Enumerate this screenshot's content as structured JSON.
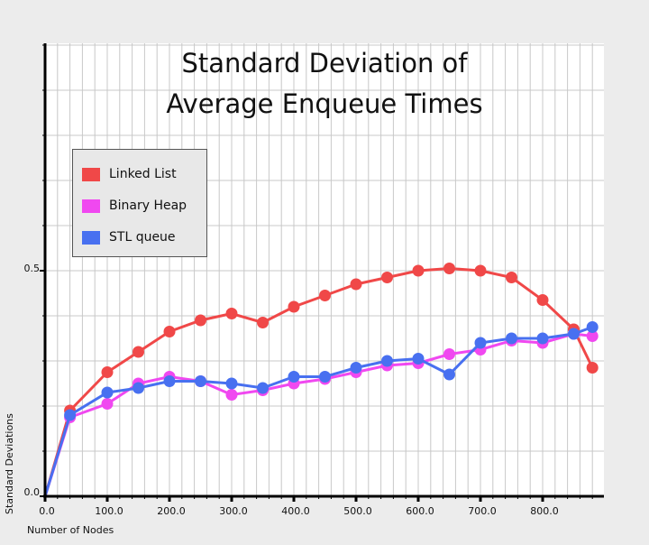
{
  "chart_data": {
    "type": "line",
    "title_lines": [
      "Standard Deviation of",
      "Average Enqueue Times"
    ],
    "xlabel": "Number of Nodes",
    "ylabel": "Standard Deviations",
    "xlim": [
      0,
      900
    ],
    "ylim": [
      0,
      1.0
    ],
    "x_tick_labels": [
      "0.0",
      "100.0",
      "200.0",
      "300.0",
      "400.0",
      "500.0",
      "600.0",
      "700.0",
      "800.0"
    ],
    "y_tick_labels": [
      "0.0",
      "0.5"
    ],
    "grid": true,
    "legend_position": "upper-left",
    "x": [
      0,
      40,
      100,
      150,
      200,
      250,
      300,
      350,
      400,
      450,
      500,
      550,
      600,
      650,
      700,
      750,
      800,
      850,
      880
    ],
    "series": [
      {
        "name": "Linked List",
        "color": "#f04848",
        "values": [
          0.0,
          0.19,
          0.275,
          0.32,
          0.365,
          0.39,
          0.405,
          0.385,
          0.42,
          0.445,
          0.47,
          0.485,
          0.5,
          0.505,
          0.5,
          0.485,
          0.435,
          0.37,
          0.285
        ]
      },
      {
        "name": "Binary Heap",
        "color": "#f048f0",
        "values": [
          0.0,
          0.175,
          0.205,
          0.25,
          0.265,
          0.255,
          0.225,
          0.235,
          0.25,
          0.26,
          0.275,
          0.29,
          0.295,
          0.315,
          0.325,
          0.345,
          0.34,
          0.36,
          0.355
        ]
      },
      {
        "name": "STL queue",
        "color": "#4870f0",
        "values": [
          0.0,
          0.18,
          0.23,
          0.24,
          0.255,
          0.255,
          0.25,
          0.24,
          0.265,
          0.265,
          0.285,
          0.3,
          0.305,
          0.27,
          0.34,
          0.35,
          0.35,
          0.36,
          0.375
        ]
      }
    ]
  }
}
